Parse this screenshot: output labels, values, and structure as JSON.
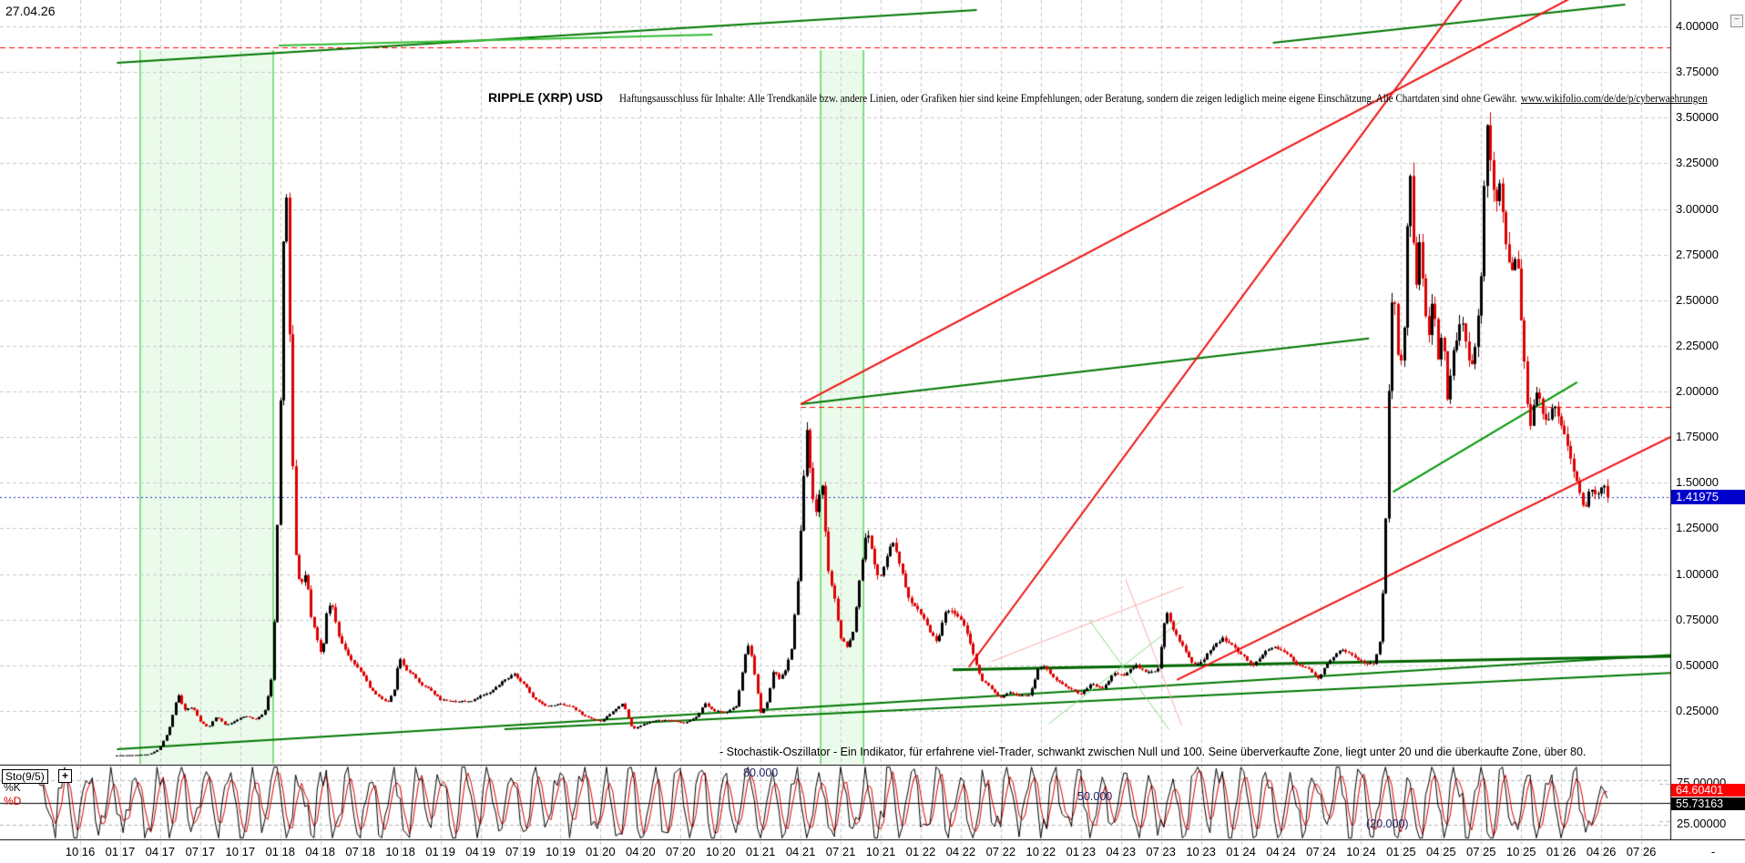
{
  "window": {
    "date_label": "27.04.26",
    "collapse_icon": "−"
  },
  "header": {
    "title": "RIPPLE (XRP) USD",
    "disclaimer": "Haftungsausschluss für Inhalte: Alle Trendkanäle bzw. andere Linien, oder Grafiken hier sind keine Empfehlungen, oder Beratung, sondern die zeigen lediglich meine eigene Einschätzung. Alle Chartdaten sind ohne Gewähr.",
    "link": "www.wikifolio.com/de/de/p/cyberwaehrungen"
  },
  "price_axis": {
    "tick_labels": [
      "4.00000",
      "3.75000",
      "3.50000",
      "3.25000",
      "3.00000",
      "2.75000",
      "2.50000",
      "2.25000",
      "2.00000",
      "1.75000",
      "1.50000",
      "1.25000",
      "1.00000",
      "0.75000",
      "0.50000",
      "0.25000"
    ],
    "tick_values": [
      4.0,
      3.75,
      3.5,
      3.25,
      3.0,
      2.75,
      2.5,
      2.25,
      2.0,
      1.75,
      1.5,
      1.25,
      1.0,
      0.75,
      0.5,
      0.25
    ],
    "current_tag": {
      "text": "1.41975",
      "bg_color": "#0000CC"
    }
  },
  "time_axis": {
    "labels": [
      "10 16",
      "01 17",
      "04 17",
      "07 17",
      "10 17",
      "01 18",
      "04 18",
      "07 18",
      "10 18",
      "01 19",
      "04 19",
      "07 19",
      "10 19",
      "01 20",
      "04 20",
      "07 20",
      "10 20",
      "01 21",
      "04 21",
      "07 21",
      "10 21",
      "01 22",
      "04 22",
      "07 22",
      "10 22",
      "01 23",
      "04 23",
      "07 23",
      "10 23",
      "01 24",
      "04 24",
      "07 24",
      "10 24",
      "01 25",
      "04 25",
      "07 25",
      "10 25",
      "01 26",
      "04 26",
      "07 26"
    ],
    "overflow_label": "-"
  },
  "oscillator_panel": {
    "name_button": "Sto(9/5)",
    "add_button": "+",
    "k_label": "%K",
    "d_label": "%D",
    "level_labels": {
      "overbought": "80.000",
      "middle": "50.000",
      "oversold": "(20.000)"
    },
    "axis_labels": [
      "75.00000",
      "25.00000"
    ],
    "d_tag": {
      "text": "64.60401",
      "bg": "#FF0000"
    },
    "k_tag": {
      "text": "55.73163",
      "bg": "#000000"
    },
    "description": "- Stochastik-Oszillator - Ein Indikator, für erfahrene viel-Trader, schwankt zwischen Null und 100. Seine überverkaufte Zone, liegt unter 20 und die überkaufte Zone, über 80."
  },
  "colors": {
    "up_candle": "#000000",
    "down_candle": "#dd0000",
    "grid": "#c9c9c9",
    "band_fill": "#ebfbeb",
    "band_border": "#5fd65f",
    "axis_line": "#000000",
    "blue_line": "#2233cc",
    "red_line": "#ff0000"
  },
  "chart_data": {
    "type": "candlestick",
    "title": "RIPPLE (XRP) USD",
    "x_unit": "decimal_year",
    "x_range": [
      2016.3,
      2026.75
    ],
    "y_range": [
      -0.03,
      4.145
    ],
    "price_grid_step": 0.25,
    "last_price": 1.41975,
    "close_anchors": [
      [
        2016.98,
        0.006
      ],
      [
        2017.05,
        0.007
      ],
      [
        2017.12,
        0.009
      ],
      [
        2017.18,
        0.012
      ],
      [
        2017.24,
        0.04
      ],
      [
        2017.3,
        0.14
      ],
      [
        2017.36,
        0.34
      ],
      [
        2017.4,
        0.25
      ],
      [
        2017.45,
        0.27
      ],
      [
        2017.5,
        0.19
      ],
      [
        2017.55,
        0.16
      ],
      [
        2017.6,
        0.22
      ],
      [
        2017.66,
        0.17
      ],
      [
        2017.72,
        0.2
      ],
      [
        2017.78,
        0.22
      ],
      [
        2017.84,
        0.2
      ],
      [
        2017.9,
        0.24
      ],
      [
        2017.94,
        0.4
      ],
      [
        2017.97,
        0.9
      ],
      [
        2018.0,
        2.0
      ],
      [
        2018.03,
        3.35
      ],
      [
        2018.05,
        2.55
      ],
      [
        2018.08,
        1.45
      ],
      [
        2018.1,
        1.0
      ],
      [
        2018.13,
        0.95
      ],
      [
        2018.16,
        1.02
      ],
      [
        2018.19,
        0.78
      ],
      [
        2018.23,
        0.64
      ],
      [
        2018.26,
        0.55
      ],
      [
        2018.29,
        0.8
      ],
      [
        2018.32,
        0.83
      ],
      [
        2018.36,
        0.66
      ],
      [
        2018.41,
        0.57
      ],
      [
        2018.46,
        0.5
      ],
      [
        2018.51,
        0.45
      ],
      [
        2018.56,
        0.37
      ],
      [
        2018.62,
        0.32
      ],
      [
        2018.67,
        0.3
      ],
      [
        2018.71,
        0.36
      ],
      [
        2018.74,
        0.54
      ],
      [
        2018.78,
        0.47
      ],
      [
        2018.82,
        0.45
      ],
      [
        2018.87,
        0.4
      ],
      [
        2018.93,
        0.37
      ],
      [
        2019.0,
        0.31
      ],
      [
        2019.1,
        0.3
      ],
      [
        2019.2,
        0.31
      ],
      [
        2019.3,
        0.35
      ],
      [
        2019.4,
        0.42
      ],
      [
        2019.46,
        0.45
      ],
      [
        2019.52,
        0.4
      ],
      [
        2019.58,
        0.32
      ],
      [
        2019.66,
        0.27
      ],
      [
        2019.74,
        0.29
      ],
      [
        2019.82,
        0.27
      ],
      [
        2019.9,
        0.22
      ],
      [
        2020.0,
        0.19
      ],
      [
        2020.08,
        0.25
      ],
      [
        2020.14,
        0.29
      ],
      [
        2020.2,
        0.15
      ],
      [
        2020.27,
        0.18
      ],
      [
        2020.35,
        0.2
      ],
      [
        2020.45,
        0.2
      ],
      [
        2020.52,
        0.18
      ],
      [
        2020.6,
        0.22
      ],
      [
        2020.65,
        0.29
      ],
      [
        2020.7,
        0.25
      ],
      [
        2020.78,
        0.24
      ],
      [
        2020.85,
        0.28
      ],
      [
        2020.9,
        0.55
      ],
      [
        2020.93,
        0.62
      ],
      [
        2020.96,
        0.45
      ],
      [
        2021.0,
        0.23
      ],
      [
        2021.04,
        0.3
      ],
      [
        2021.08,
        0.48
      ],
      [
        2021.11,
        0.42
      ],
      [
        2021.15,
        0.46
      ],
      [
        2021.19,
        0.58
      ],
      [
        2021.23,
        0.95
      ],
      [
        2021.27,
        1.55
      ],
      [
        2021.29,
        1.82
      ],
      [
        2021.32,
        1.42
      ],
      [
        2021.35,
        1.32
      ],
      [
        2021.38,
        1.52
      ],
      [
        2021.42,
        1.02
      ],
      [
        2021.46,
        0.86
      ],
      [
        2021.5,
        0.64
      ],
      [
        2021.54,
        0.6
      ],
      [
        2021.58,
        0.7
      ],
      [
        2021.62,
        1.0
      ],
      [
        2021.66,
        1.26
      ],
      [
        2021.7,
        1.1
      ],
      [
        2021.74,
        0.96
      ],
      [
        2021.78,
        1.06
      ],
      [
        2021.82,
        1.18
      ],
      [
        2021.87,
        1.05
      ],
      [
        2021.92,
        0.88
      ],
      [
        2022.0,
        0.79
      ],
      [
        2022.06,
        0.68
      ],
      [
        2022.1,
        0.62
      ],
      [
        2022.15,
        0.78
      ],
      [
        2022.2,
        0.8
      ],
      [
        2022.26,
        0.74
      ],
      [
        2022.32,
        0.58
      ],
      [
        2022.38,
        0.41
      ],
      [
        2022.44,
        0.37
      ],
      [
        2022.5,
        0.32
      ],
      [
        2022.56,
        0.35
      ],
      [
        2022.62,
        0.33
      ],
      [
        2022.68,
        0.34
      ],
      [
        2022.73,
        0.48
      ],
      [
        2022.78,
        0.49
      ],
      [
        2022.83,
        0.43
      ],
      [
        2022.9,
        0.38
      ],
      [
        2023.0,
        0.34
      ],
      [
        2023.07,
        0.4
      ],
      [
        2023.14,
        0.37
      ],
      [
        2023.2,
        0.45
      ],
      [
        2023.27,
        0.45
      ],
      [
        2023.34,
        0.5
      ],
      [
        2023.41,
        0.46
      ],
      [
        2023.48,
        0.48
      ],
      [
        2023.53,
        0.8
      ],
      [
        2023.56,
        0.72
      ],
      [
        2023.6,
        0.66
      ],
      [
        2023.65,
        0.58
      ],
      [
        2023.7,
        0.5
      ],
      [
        2023.76,
        0.52
      ],
      [
        2023.82,
        0.6
      ],
      [
        2023.88,
        0.65
      ],
      [
        2023.94,
        0.61
      ],
      [
        2024.0,
        0.56
      ],
      [
        2024.07,
        0.5
      ],
      [
        2024.14,
        0.56
      ],
      [
        2024.2,
        0.61
      ],
      [
        2024.27,
        0.57
      ],
      [
        2024.34,
        0.51
      ],
      [
        2024.41,
        0.48
      ],
      [
        2024.48,
        0.43
      ],
      [
        2024.55,
        0.53
      ],
      [
        2024.62,
        0.58
      ],
      [
        2024.69,
        0.55
      ],
      [
        2024.76,
        0.52
      ],
      [
        2024.83,
        0.51
      ],
      [
        2024.87,
        0.65
      ],
      [
        2024.9,
        1.2
      ],
      [
        2024.93,
        2.25
      ],
      [
        2024.95,
        2.62
      ],
      [
        2024.98,
        2.2
      ],
      [
        2025.01,
        2.15
      ],
      [
        2025.03,
        2.6
      ],
      [
        2025.05,
        3.28
      ],
      [
        2025.07,
        3.0
      ],
      [
        2025.09,
        2.5
      ],
      [
        2025.11,
        2.85
      ],
      [
        2025.14,
        2.52
      ],
      [
        2025.17,
        2.3
      ],
      [
        2025.2,
        2.52
      ],
      [
        2025.23,
        2.18
      ],
      [
        2025.26,
        2.32
      ],
      [
        2025.29,
        1.95
      ],
      [
        2025.32,
        2.18
      ],
      [
        2025.35,
        2.32
      ],
      [
        2025.38,
        2.42
      ],
      [
        2025.41,
        2.24
      ],
      [
        2025.44,
        2.14
      ],
      [
        2025.47,
        2.3
      ],
      [
        2025.5,
        2.6
      ],
      [
        2025.52,
        3.1
      ],
      [
        2025.54,
        3.42
      ],
      [
        2025.56,
        3.15
      ],
      [
        2025.59,
        2.95
      ],
      [
        2025.61,
        3.18
      ],
      [
        2025.64,
        2.92
      ],
      [
        2025.67,
        2.68
      ],
      [
        2025.7,
        2.62
      ],
      [
        2025.72,
        2.8
      ],
      [
        2025.75,
        2.38
      ],
      [
        2025.78,
        2.05
      ],
      [
        2025.8,
        1.8
      ],
      [
        2025.83,
        1.98
      ],
      [
        2025.86,
        2.0
      ],
      [
        2025.89,
        1.88
      ],
      [
        2025.92,
        1.84
      ],
      [
        2025.96,
        1.92
      ],
      [
        2026.0,
        1.82
      ],
      [
        2026.04,
        1.7
      ],
      [
        2026.08,
        1.55
      ],
      [
        2026.12,
        1.4
      ],
      [
        2026.15,
        1.36
      ],
      [
        2026.18,
        1.46
      ],
      [
        2026.22,
        1.42
      ],
      [
        2026.26,
        1.46
      ],
      [
        2026.3,
        1.41975
      ]
    ],
    "highlight_bands": [
      {
        "t0": 2017.125,
        "t1": 2017.956
      },
      {
        "t0": 2021.375,
        "t1": 2021.643
      }
    ],
    "h_lines": [
      {
        "value": 3.885,
        "color": "#ff0000",
        "style": "dashed",
        "t0": null,
        "t1": null
      },
      {
        "value": 1.915,
        "color": "#ff0000",
        "style": "dashed",
        "t0": 2021.25,
        "t1": null
      },
      {
        "value": 1.41975,
        "color": "#2233cc",
        "style": "dotted",
        "t0": null,
        "t1": null
      }
    ],
    "trend_lines": [
      {
        "t0": 2016.98,
        "v0": 3.8,
        "t1": 2022.35,
        "v1": 4.09,
        "color": "#007700",
        "w": 2
      },
      {
        "t0": 2024.2,
        "v0": 3.91,
        "t1": 2026.4,
        "v1": 4.12,
        "color": "#007700",
        "w": 2
      },
      {
        "t0": 2017.99,
        "v0": 3.895,
        "t1": 2020.7,
        "v1": 3.955,
        "color": "#33bb33",
        "w": 2
      },
      {
        "t0": 2016.98,
        "v0": 0.04,
        "t1": 2026.75,
        "v1": 0.56,
        "color": "#007700",
        "w": 2
      },
      {
        "t0": 2019.4,
        "v0": 0.15,
        "t1": 2026.75,
        "v1": 0.46,
        "color": "#007700",
        "w": 2
      },
      {
        "t0": 2022.2,
        "v0": 0.475,
        "t1": 2026.75,
        "v1": 0.55,
        "color": "#006600",
        "w": 3
      },
      {
        "t0": 2021.25,
        "v0": 1.93,
        "t1": 2024.8,
        "v1": 2.29,
        "color": "#007700",
        "w": 2
      },
      {
        "t0": 2024.95,
        "v0": 1.45,
        "t1": 2026.1,
        "v1": 2.05,
        "color": "#009900",
        "w": 2
      },
      {
        "t0": 2022.3,
        "v0": 0.49,
        "t1": 2025.38,
        "v1": 4.15,
        "color": "#ee1111",
        "w": 2
      },
      {
        "t0": 2021.25,
        "v0": 1.93,
        "t1": 2026.05,
        "v1": 4.15,
        "color": "#ee1111",
        "w": 2
      },
      {
        "t0": 2023.6,
        "v0": 0.42,
        "t1": 2026.75,
        "v1": 1.78,
        "color": "#ee1111",
        "w": 2
      },
      {
        "t0": 2022.44,
        "v0": 0.52,
        "t1": 2023.64,
        "v1": 0.93,
        "color": "#ffaaaa",
        "w": 1
      },
      {
        "t0": 2023.28,
        "v0": 0.97,
        "t1": 2023.63,
        "v1": 0.17,
        "color": "#ffaaaa",
        "w": 1
      },
      {
        "t0": 2022.8,
        "v0": 0.18,
        "t1": 2023.62,
        "v1": 0.74,
        "color": "#88dd88",
        "w": 1
      },
      {
        "t0": 2023.05,
        "v0": 0.75,
        "t1": 2023.55,
        "v1": 0.15,
        "color": "#88dd88",
        "w": 1
      }
    ],
    "stochastic": {
      "indicator": "Sto(9/5)",
      "range": [
        0,
        100
      ],
      "levels": [
        80,
        50,
        20
      ],
      "axis_ticks": [
        75,
        25
      ],
      "d_last": 64.60401,
      "k_last": 55.73163
    }
  }
}
